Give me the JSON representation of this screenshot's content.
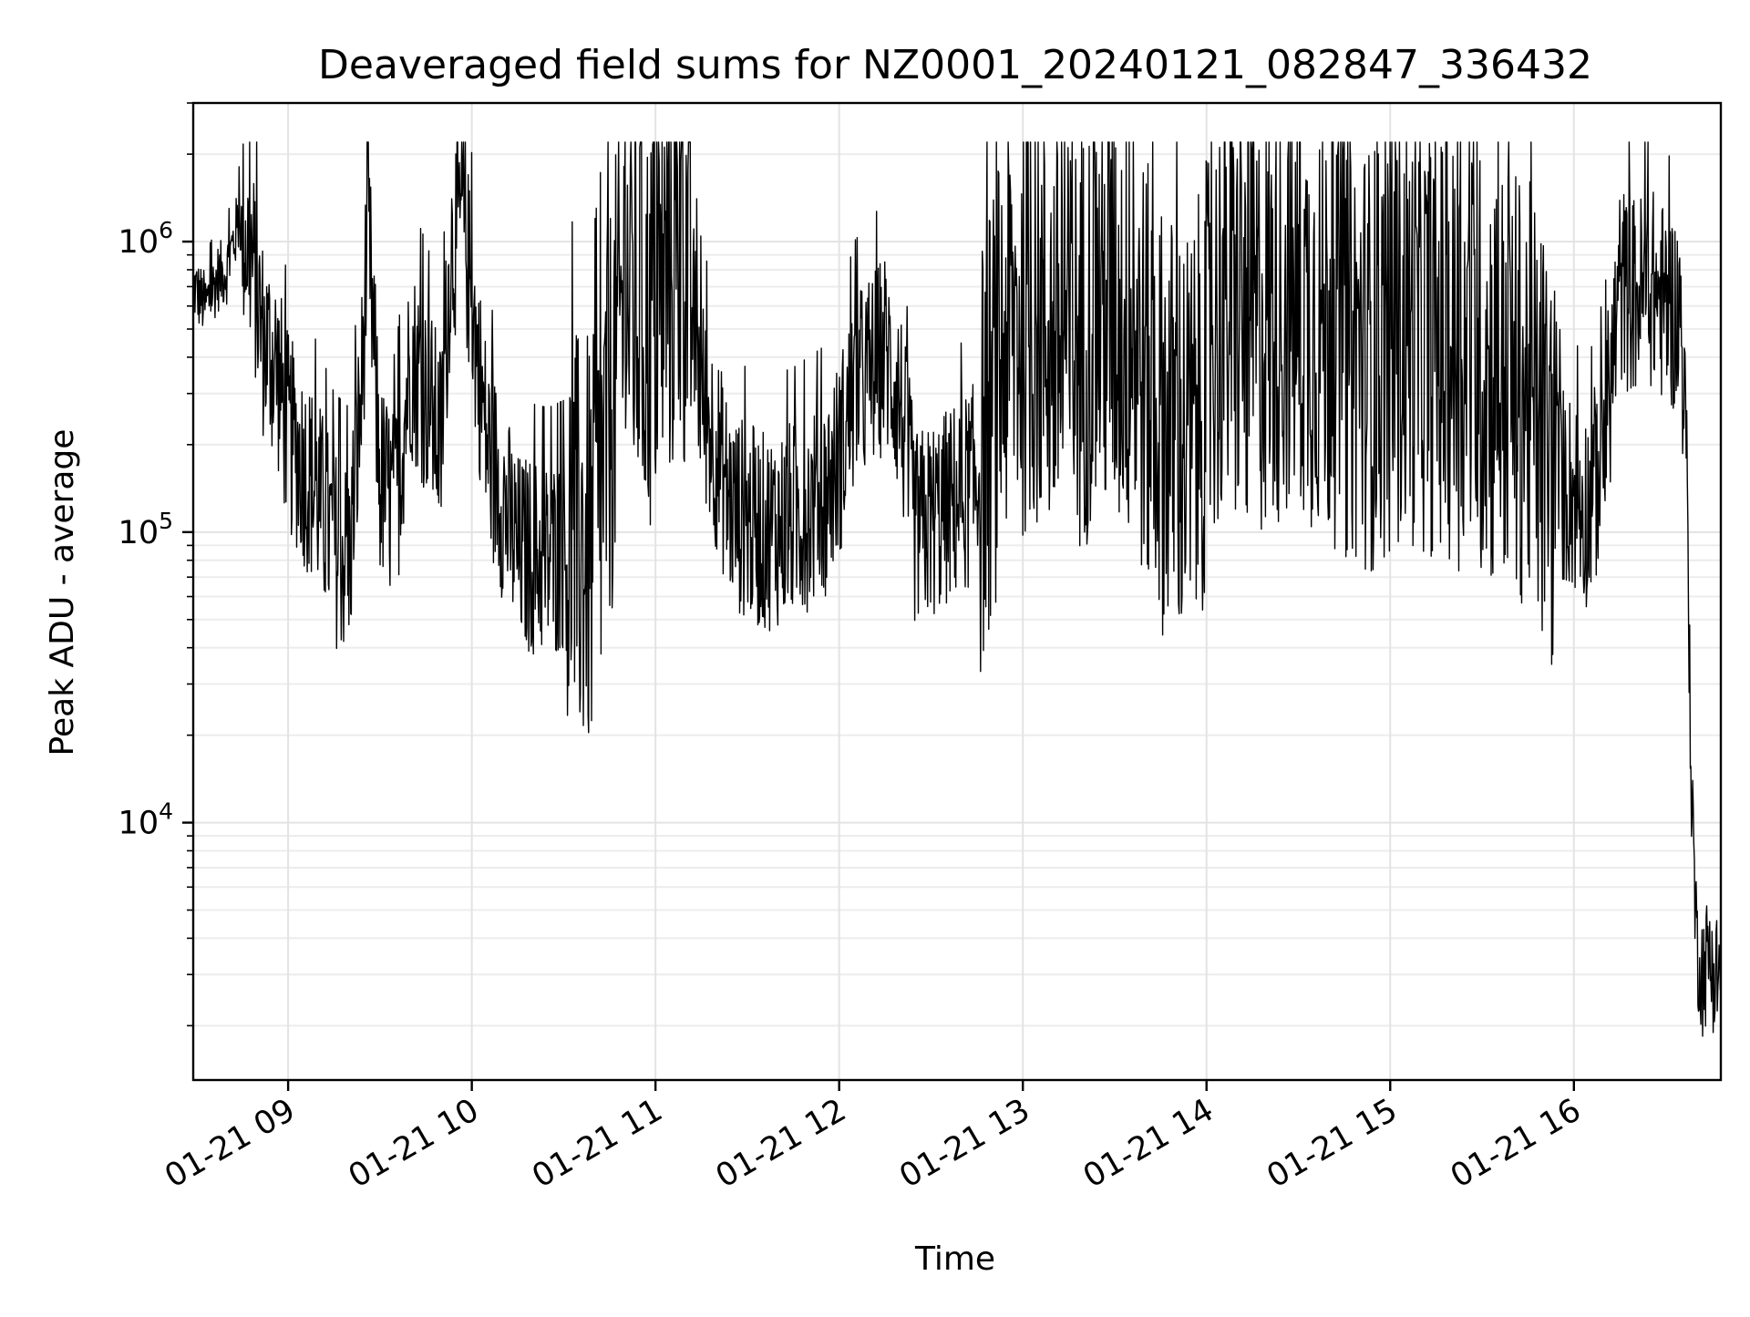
{
  "chart_data": {
    "type": "line",
    "title": "Deaveraged field sums for NZ0001_20240121_082847_336432",
    "xlabel": "Time",
    "ylabel": "Peak ADU - average",
    "yscale": "log",
    "ylim": [
      1300,
      3000000
    ],
    "xlim": [
      "2024-01-21 08:29",
      "2024-01-21 16:48"
    ],
    "grid": true,
    "x_ticks": [
      {
        "value": "2024-01-21 09:00",
        "label": "01-21 09"
      },
      {
        "value": "2024-01-21 10:00",
        "label": "01-21 10"
      },
      {
        "value": "2024-01-21 11:00",
        "label": "01-21 11"
      },
      {
        "value": "2024-01-21 12:00",
        "label": "01-21 12"
      },
      {
        "value": "2024-01-21 13:00",
        "label": "01-21 13"
      },
      {
        "value": "2024-01-21 14:00",
        "label": "01-21 14"
      },
      {
        "value": "2024-01-21 15:00",
        "label": "01-21 15"
      },
      {
        "value": "2024-01-21 16:00",
        "label": "01-21 16"
      }
    ],
    "y_ticks": [
      {
        "value": 10000,
        "base": "10",
        "exp": "4"
      },
      {
        "value": 100000,
        "base": "10",
        "exp": "5"
      },
      {
        "value": 1000000,
        "base": "10",
        "exp": "6"
      }
    ],
    "series": [
      {
        "color": "#000000",
        "x": [
          "2024-01-21 08:29",
          "2024-01-21 08:33",
          "2024-01-21 08:37",
          "2024-01-21 08:40",
          "2024-01-21 08:44",
          "2024-01-21 08:48",
          "2024-01-21 08:52",
          "2024-01-21 08:56",
          "2024-01-21 09:00",
          "2024-01-21 09:05",
          "2024-01-21 09:10",
          "2024-01-21 09:15",
          "2024-01-21 09:20",
          "2024-01-21 09:24",
          "2024-01-21 09:26",
          "2024-01-21 09:30",
          "2024-01-21 09:35",
          "2024-01-21 09:40",
          "2024-01-21 09:45",
          "2024-01-21 09:50",
          "2024-01-21 09:53",
          "2024-01-21 09:57",
          "2024-01-21 10:00",
          "2024-01-21 10:05",
          "2024-01-21 10:15",
          "2024-01-21 10:25",
          "2024-01-21 10:35",
          "2024-01-21 10:40",
          "2024-01-21 10:50",
          "2024-01-21 10:58",
          "2024-01-21 11:05",
          "2024-01-21 11:10",
          "2024-01-21 11:15",
          "2024-01-21 11:25",
          "2024-01-21 11:35",
          "2024-01-21 11:45",
          "2024-01-21 11:55",
          "2024-01-21 12:00",
          "2024-01-21 12:05",
          "2024-01-21 12:10",
          "2024-01-21 12:15",
          "2024-01-21 12:20",
          "2024-01-21 12:25",
          "2024-01-21 12:35",
          "2024-01-21 12:45",
          "2024-01-21 12:55",
          "2024-01-21 13:05",
          "2024-01-21 13:15",
          "2024-01-21 13:25",
          "2024-01-21 13:35",
          "2024-01-21 13:45",
          "2024-01-21 13:55",
          "2024-01-21 14:05",
          "2024-01-21 14:15",
          "2024-01-21 14:25",
          "2024-01-21 14:35",
          "2024-01-21 14:45",
          "2024-01-21 14:55",
          "2024-01-21 15:05",
          "2024-01-21 15:15",
          "2024-01-21 15:25",
          "2024-01-21 15:35",
          "2024-01-21 15:45",
          "2024-01-21 15:55",
          "2024-01-21 16:05",
          "2024-01-21 16:10",
          "2024-01-21 16:15",
          "2024-01-21 16:20",
          "2024-01-21 16:25",
          "2024-01-21 16:30",
          "2024-01-21 16:35",
          "2024-01-21 16:37",
          "2024-01-21 16:38",
          "2024-01-21 16:40",
          "2024-01-21 16:42",
          "2024-01-21 16:44",
          "2024-01-21 16:46",
          "2024-01-21 16:48"
        ],
        "y": [
          700000,
          600000,
          750000,
          800000,
          1200000,
          900000,
          450000,
          380000,
          220000,
          170000,
          130000,
          90000,
          80000,
          300000,
          1200000,
          150000,
          120000,
          400000,
          300000,
          200000,
          900000,
          1300000,
          600000,
          200000,
          85000,
          80000,
          90000,
          85000,
          700000,
          500000,
          800000,
          900000,
          300000,
          120000,
          100000,
          110000,
          130000,
          180000,
          300000,
          350000,
          420000,
          280000,
          100000,
          120000,
          150000,
          500000,
          550000,
          400000,
          600000,
          500000,
          250000,
          200000,
          600000,
          500000,
          600000,
          550000,
          450000,
          400000,
          500000,
          450000,
          400000,
          350000,
          300000,
          150000,
          120000,
          200000,
          700000,
          650000,
          700000,
          600000,
          550000,
          180000,
          20000,
          4000,
          3000,
          3500,
          3000,
          3200
        ]
      }
    ]
  }
}
